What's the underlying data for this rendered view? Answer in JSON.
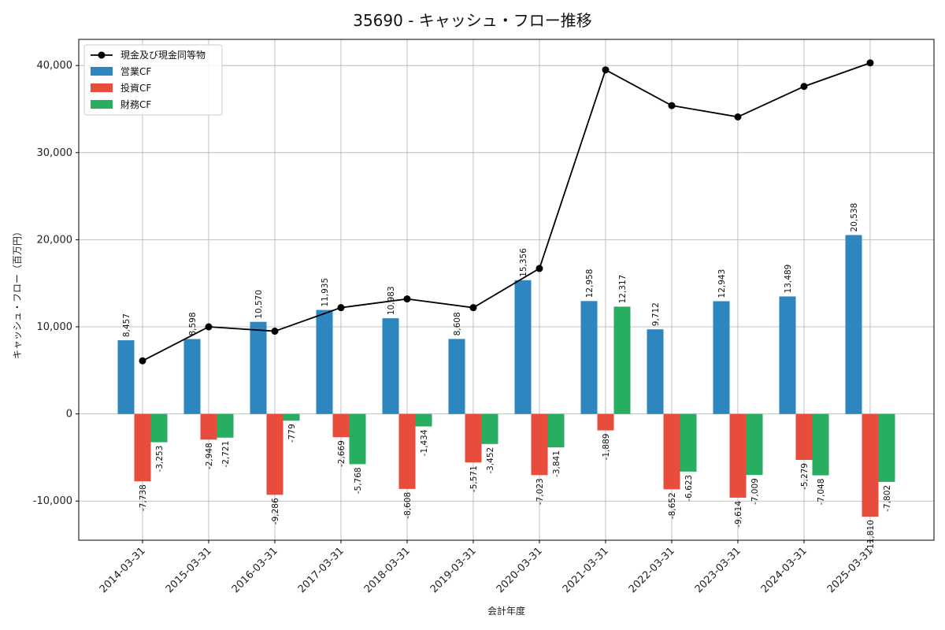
{
  "chart_data": {
    "type": "bar",
    "title": "35690 - キャッシュ・フロー推移",
    "xlabel": "会計年度",
    "ylabel": "キャッシュ・フロー（百万円）",
    "categories": [
      "2014-03-31",
      "2015-03-31",
      "2016-03-31",
      "2017-03-31",
      "2018-03-31",
      "2019-03-31",
      "2020-03-31",
      "2021-03-31",
      "2022-03-31",
      "2023-03-31",
      "2024-03-31",
      "2025-03-31"
    ],
    "ylim": [
      -14500,
      43000
    ],
    "yticks": [
      -10000,
      0,
      10000,
      20000,
      30000,
      40000
    ],
    "ytick_labels": [
      "-10,000",
      "0",
      "10,000",
      "20,000",
      "30,000",
      "40,000"
    ],
    "grid": true,
    "legend_position": "top-left",
    "series": [
      {
        "name": "営業CF",
        "kind": "bar",
        "color": "#2e86c1",
        "values": [
          8457,
          8598,
          10570,
          11935,
          10983,
          8608,
          15356,
          12958,
          9712,
          12943,
          13489,
          20538
        ],
        "labels": [
          "8,457",
          "8,598",
          "10,570",
          "11,935",
          "10,983",
          "8,608",
          "15,356",
          "12,958",
          "9,712",
          "12,943",
          "13,489",
          "20,538"
        ]
      },
      {
        "name": "投資CF",
        "kind": "bar",
        "color": "#e74c3c",
        "values": [
          -7738,
          -2948,
          -9286,
          -2669,
          -8608,
          -5571,
          -7023,
          -1889,
          -8652,
          -9614,
          -5279,
          -11810
        ],
        "labels": [
          "-7,738",
          "-2,948",
          "-9,286",
          "-2,669",
          "-8,608",
          "-5,571",
          "-7,023",
          "-1,889",
          "-8,652",
          "-9,614",
          "-5,279",
          "-11,810"
        ]
      },
      {
        "name": "財務CF",
        "kind": "bar",
        "color": "#27ae60",
        "values": [
          -3253,
          -2721,
          -779,
          -5768,
          -1434,
          -3452,
          -3841,
          12317,
          -6623,
          -7009,
          -7048,
          -7802
        ],
        "labels": [
          "-3,253",
          "-2,721",
          "-779",
          "-5,768",
          "-1,434",
          "-3,452",
          "-3,841",
          "12,317",
          "-6,623",
          "-7,009",
          "-7,048",
          "-7,802"
        ]
      }
    ],
    "line": {
      "name": "現金及び現金同等物",
      "color": "#000000",
      "values": [
        6100,
        10000,
        9500,
        12200,
        13200,
        12200,
        16700,
        39500,
        35400,
        34100,
        37600,
        40300
      ]
    }
  }
}
